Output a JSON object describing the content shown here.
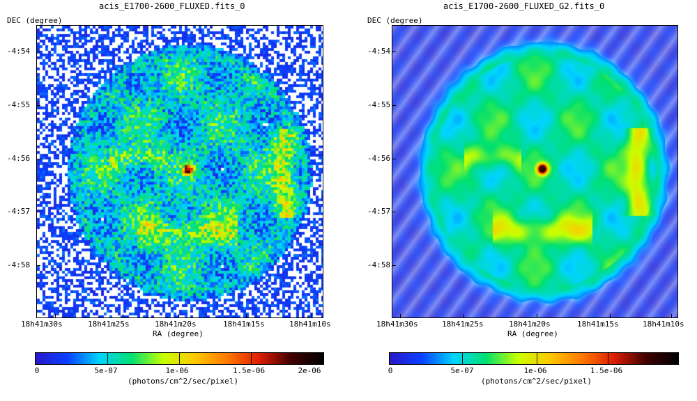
{
  "panels": [
    {
      "title": "acis_E1700-2600_FLUXED.fits_0",
      "y_axis_label": "DEC (degree)",
      "x_axis_label": "RA (degree)",
      "y_ticks": [
        "-4:54",
        "-4:55",
        "-4:56",
        "-4:57",
        "-4:58"
      ],
      "x_ticks": [
        "18h41m30s",
        "18h41m25s",
        "18h41m20s",
        "18h41m15s",
        "18h41m10s"
      ],
      "colorbar": {
        "ticks": [
          "0",
          "5e-07",
          "1e-06",
          "1.5e-06",
          "2e-06"
        ],
        "label": "(photons/cm^2/sec/pixel)"
      },
      "image_style": "noisy"
    },
    {
      "title": "acis_E1700-2600_FLUXED_G2.fits_0",
      "y_axis_label": "DEC (degree)",
      "x_axis_label": "RA (degree)",
      "y_ticks": [
        "-4:54",
        "-4:55",
        "-4:56",
        "-4:57",
        "-4:58"
      ],
      "x_ticks": [
        "18h41m30s",
        "18h41m25s",
        "18h41m20s",
        "18h41m15s",
        "18h41m10s"
      ],
      "colorbar": {
        "ticks": [
          "0",
          "5e-07",
          "1e-06",
          "1.5e-06"
        ],
        "label": "(photons/cm^2/sec/pixel)"
      },
      "image_style": "smooth"
    }
  ],
  "colormap": [
    "#ffffff",
    "#2a18c8",
    "#0a40ff",
    "#00d4ff",
    "#00e070",
    "#c8ff00",
    "#ffc800",
    "#ff7800",
    "#dc1e00",
    "#400000",
    "#000000"
  ]
}
